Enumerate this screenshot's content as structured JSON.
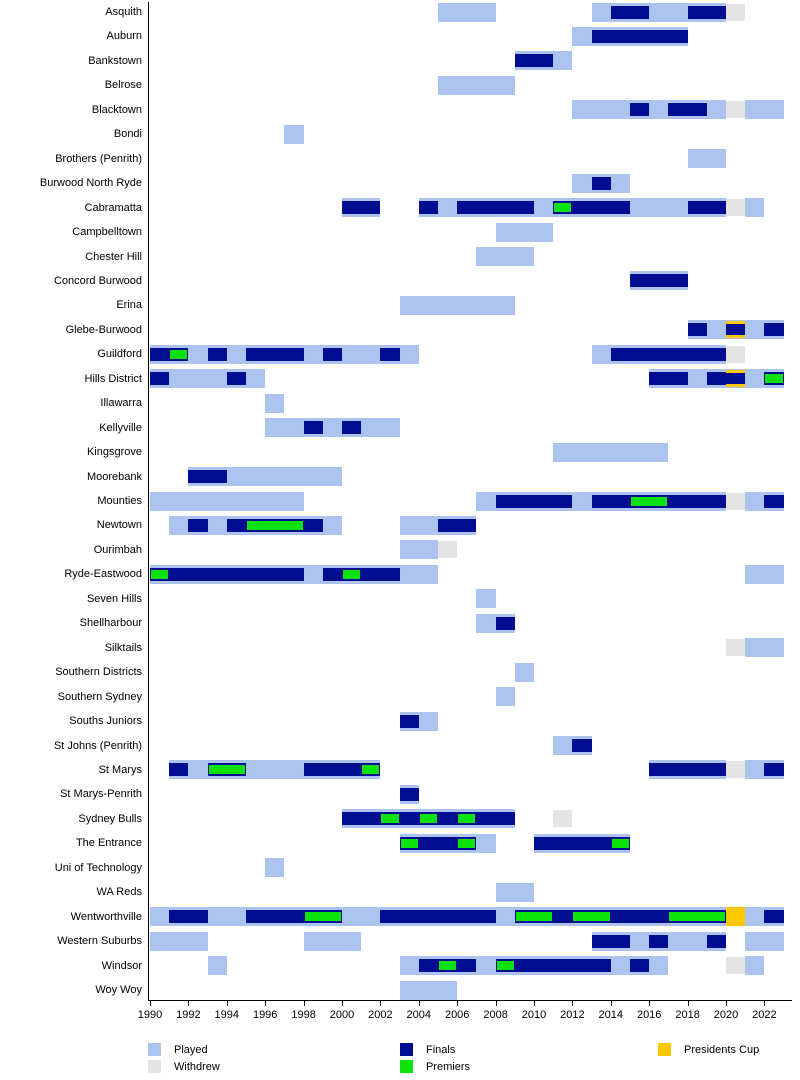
{
  "legend": {
    "items": [
      {
        "label": "Played",
        "status": "played"
      },
      {
        "label": "Withdrew",
        "status": "withdrew"
      },
      {
        "label": "Finals",
        "status": "finals"
      },
      {
        "label": "Premiers",
        "status": "premiers"
      },
      {
        "label": "Presidents Cup",
        "status": "presidents_cup"
      }
    ]
  },
  "chart_data": {
    "type": "timeline",
    "title": "",
    "xlabel": "",
    "ylabel": "",
    "year_min": 1990,
    "year_max": 2023,
    "tick_years": [
      1990,
      1992,
      1994,
      1996,
      1998,
      2000,
      2002,
      2004,
      2006,
      2008,
      2010,
      2012,
      2014,
      2016,
      2018,
      2020,
      2022
    ],
    "status_colors": {
      "played": "#aac3ef",
      "withdrew": "#e4e4e4",
      "finals": "#000d91",
      "premiers": "#0be30b",
      "presidents_cup": "#fdc800"
    },
    "rows": [
      {
        "name": "Asquith",
        "segments": [
          [
            2005,
            2007,
            "played"
          ],
          [
            2013,
            2013,
            "played"
          ],
          [
            2014,
            2015,
            "finals"
          ],
          [
            2016,
            2017,
            "played"
          ],
          [
            2018,
            2019,
            "finals"
          ],
          [
            2020,
            2020,
            "withdrew"
          ]
        ]
      },
      {
        "name": "Auburn",
        "segments": [
          [
            2012,
            2012,
            "played"
          ],
          [
            2013,
            2017,
            "finals"
          ]
        ]
      },
      {
        "name": "Bankstown",
        "segments": [
          [
            2009,
            2010,
            "finals"
          ],
          [
            2011,
            2011,
            "played"
          ]
        ]
      },
      {
        "name": "Belrose",
        "segments": [
          [
            2005,
            2008,
            "played"
          ]
        ]
      },
      {
        "name": "Blacktown",
        "segments": [
          [
            2012,
            2014,
            "played"
          ],
          [
            2015,
            2015,
            "finals"
          ],
          [
            2016,
            2016,
            "played"
          ],
          [
            2017,
            2018,
            "finals"
          ],
          [
            2019,
            2019,
            "played"
          ],
          [
            2020,
            2020,
            "withdrew"
          ],
          [
            2021,
            2022,
            "played"
          ]
        ]
      },
      {
        "name": "Bondi",
        "segments": [
          [
            1997,
            1997,
            "played"
          ]
        ]
      },
      {
        "name": "Brothers (Penrith)",
        "segments": [
          [
            2018,
            2019,
            "played"
          ]
        ]
      },
      {
        "name": "Burwood North Ryde",
        "segments": [
          [
            2012,
            2012,
            "played"
          ],
          [
            2013,
            2013,
            "finals"
          ],
          [
            2014,
            2014,
            "played"
          ]
        ]
      },
      {
        "name": "Cabramatta",
        "segments": [
          [
            2000,
            2001,
            "finals"
          ],
          [
            2004,
            2004,
            "finals"
          ],
          [
            2005,
            2005,
            "played"
          ],
          [
            2006,
            2009,
            "finals"
          ],
          [
            2010,
            2010,
            "played"
          ],
          [
            2011,
            2011,
            "premiers"
          ],
          [
            2012,
            2014,
            "finals"
          ],
          [
            2015,
            2017,
            "played"
          ],
          [
            2018,
            2019,
            "finals"
          ],
          [
            2020,
            2020,
            "withdrew"
          ],
          [
            2021,
            2021,
            "played"
          ]
        ]
      },
      {
        "name": "Campbelltown",
        "segments": [
          [
            2008,
            2010,
            "played"
          ]
        ]
      },
      {
        "name": "Chester Hill",
        "segments": [
          [
            2007,
            2009,
            "played"
          ]
        ]
      },
      {
        "name": "Concord Burwood",
        "segments": [
          [
            2015,
            2017,
            "finals"
          ]
        ]
      },
      {
        "name": "Erina",
        "segments": [
          [
            2003,
            2008,
            "played"
          ]
        ]
      },
      {
        "name": "Glebe-Burwood",
        "segments": [
          [
            2018,
            2018,
            "finals"
          ],
          [
            2019,
            2019,
            "played"
          ],
          [
            2020,
            2020,
            "finals_presidents_cup"
          ],
          [
            2021,
            2021,
            "played"
          ],
          [
            2022,
            2022,
            "finals"
          ]
        ]
      },
      {
        "name": "Guildford",
        "segments": [
          [
            1990,
            1990,
            "finals"
          ],
          [
            1991,
            1991,
            "premiers"
          ],
          [
            1992,
            1992,
            "played"
          ],
          [
            1993,
            1993,
            "finals"
          ],
          [
            1994,
            1994,
            "played"
          ],
          [
            1995,
            1997,
            "finals"
          ],
          [
            1998,
            1998,
            "played"
          ],
          [
            1999,
            1999,
            "finals"
          ],
          [
            2000,
            2001,
            "played"
          ],
          [
            2002,
            2002,
            "finals"
          ],
          [
            2003,
            2003,
            "played"
          ],
          [
            2013,
            2013,
            "played"
          ],
          [
            2014,
            2019,
            "finals"
          ],
          [
            2020,
            2020,
            "withdrew"
          ]
        ]
      },
      {
        "name": "Hills District",
        "segments": [
          [
            1990,
            1990,
            "finals"
          ],
          [
            1991,
            1993,
            "played"
          ],
          [
            1994,
            1994,
            "finals"
          ],
          [
            1995,
            1995,
            "played"
          ],
          [
            2016,
            2017,
            "finals"
          ],
          [
            2018,
            2018,
            "played"
          ],
          [
            2019,
            2019,
            "finals"
          ],
          [
            2020,
            2020,
            "finals_presidents_cup"
          ],
          [
            2021,
            2021,
            "played"
          ],
          [
            2022,
            2022,
            "premiers"
          ]
        ]
      },
      {
        "name": "Illawarra",
        "segments": [
          [
            1996,
            1996,
            "played"
          ]
        ]
      },
      {
        "name": "Kellyville",
        "segments": [
          [
            1996,
            1997,
            "played"
          ],
          [
            1998,
            1998,
            "finals"
          ],
          [
            1999,
            1999,
            "played"
          ],
          [
            2000,
            2000,
            "finals"
          ],
          [
            2001,
            2002,
            "played"
          ]
        ]
      },
      {
        "name": "Kingsgrove",
        "segments": [
          [
            2011,
            2016,
            "played"
          ]
        ]
      },
      {
        "name": "Moorebank",
        "segments": [
          [
            1992,
            1993,
            "finals"
          ],
          [
            1994,
            1999,
            "played"
          ]
        ]
      },
      {
        "name": "Mounties",
        "segments": [
          [
            1990,
            1997,
            "played"
          ],
          [
            2007,
            2007,
            "played"
          ],
          [
            2008,
            2011,
            "finals"
          ],
          [
            2012,
            2012,
            "played"
          ],
          [
            2013,
            2014,
            "finals"
          ],
          [
            2015,
            2016,
            "premiers"
          ],
          [
            2017,
            2019,
            "finals"
          ],
          [
            2020,
            2020,
            "withdrew"
          ],
          [
            2021,
            2021,
            "played"
          ],
          [
            2022,
            2022,
            "finals"
          ]
        ]
      },
      {
        "name": "Newtown",
        "segments": [
          [
            1991,
            1991,
            "played"
          ],
          [
            1992,
            1992,
            "finals"
          ],
          [
            1993,
            1993,
            "played"
          ],
          [
            1994,
            1994,
            "finals"
          ],
          [
            1995,
            1997,
            "premiers"
          ],
          [
            1998,
            1998,
            "finals"
          ],
          [
            1999,
            1999,
            "played"
          ],
          [
            2003,
            2004,
            "played"
          ],
          [
            2005,
            2006,
            "finals"
          ]
        ]
      },
      {
        "name": "Ourimbah",
        "segments": [
          [
            2003,
            2004,
            "played"
          ],
          [
            2005,
            2005,
            "withdrew"
          ]
        ]
      },
      {
        "name": "Ryde-Eastwood",
        "segments": [
          [
            1990,
            1990,
            "premiers"
          ],
          [
            1991,
            1997,
            "finals"
          ],
          [
            1998,
            1998,
            "played"
          ],
          [
            1999,
            1999,
            "finals"
          ],
          [
            2000,
            2000,
            "premiers"
          ],
          [
            2001,
            2002,
            "finals"
          ],
          [
            2003,
            2004,
            "played"
          ],
          [
            2021,
            2022,
            "played"
          ]
        ]
      },
      {
        "name": "Seven Hills",
        "segments": [
          [
            2007,
            2007,
            "played"
          ]
        ]
      },
      {
        "name": "Shellharbour",
        "segments": [
          [
            2007,
            2007,
            "played"
          ],
          [
            2008,
            2008,
            "finals"
          ]
        ]
      },
      {
        "name": "Silktails",
        "segments": [
          [
            2020,
            2020,
            "withdrew"
          ],
          [
            2021,
            2022,
            "played"
          ]
        ]
      },
      {
        "name": "Southern Districts",
        "segments": [
          [
            2009,
            2009,
            "played"
          ]
        ]
      },
      {
        "name": "Southern Sydney",
        "segments": [
          [
            2008,
            2008,
            "played"
          ]
        ]
      },
      {
        "name": "Souths Juniors",
        "segments": [
          [
            2003,
            2003,
            "finals"
          ],
          [
            2004,
            2004,
            "played"
          ]
        ]
      },
      {
        "name": "St Johns (Penrith)",
        "segments": [
          [
            2011,
            2011,
            "played"
          ],
          [
            2012,
            2012,
            "finals"
          ]
        ]
      },
      {
        "name": "St Marys",
        "segments": [
          [
            1991,
            1991,
            "finals"
          ],
          [
            1992,
            1992,
            "played"
          ],
          [
            1993,
            1994,
            "premiers"
          ],
          [
            1995,
            1997,
            "played"
          ],
          [
            1998,
            2000,
            "finals"
          ],
          [
            2001,
            2001,
            "premiers"
          ],
          [
            2016,
            2019,
            "finals"
          ],
          [
            2020,
            2020,
            "withdrew"
          ],
          [
            2021,
            2021,
            "played"
          ],
          [
            2022,
            2022,
            "finals"
          ]
        ]
      },
      {
        "name": "St Marys-Penrith",
        "segments": [
          [
            2003,
            2003,
            "finals"
          ]
        ]
      },
      {
        "name": "Sydney Bulls",
        "segments": [
          [
            2000,
            2001,
            "finals"
          ],
          [
            2002,
            2002,
            "premiers"
          ],
          [
            2003,
            2003,
            "finals"
          ],
          [
            2004,
            2004,
            "premiers"
          ],
          [
            2005,
            2005,
            "finals"
          ],
          [
            2006,
            2006,
            "premiers"
          ],
          [
            2007,
            2008,
            "finals"
          ],
          [
            2011,
            2011,
            "withdrew"
          ]
        ]
      },
      {
        "name": "The Entrance",
        "segments": [
          [
            2003,
            2003,
            "premiers"
          ],
          [
            2004,
            2005,
            "finals"
          ],
          [
            2006,
            2006,
            "premiers"
          ],
          [
            2007,
            2007,
            "played"
          ],
          [
            2010,
            2013,
            "finals"
          ],
          [
            2014,
            2014,
            "premiers"
          ]
        ]
      },
      {
        "name": "Uni of Technology",
        "segments": [
          [
            1996,
            1996,
            "played"
          ]
        ]
      },
      {
        "name": "WA Reds",
        "segments": [
          [
            2008,
            2009,
            "played"
          ]
        ]
      },
      {
        "name": "Wentworthville",
        "segments": [
          [
            1990,
            1990,
            "played"
          ],
          [
            1991,
            1992,
            "finals"
          ],
          [
            1993,
            1994,
            "played"
          ],
          [
            1995,
            1997,
            "finals"
          ],
          [
            1998,
            1999,
            "premiers"
          ],
          [
            2000,
            2001,
            "played"
          ],
          [
            2002,
            2007,
            "finals"
          ],
          [
            2008,
            2008,
            "played"
          ],
          [
            2009,
            2010,
            "premiers"
          ],
          [
            2011,
            2011,
            "finals"
          ],
          [
            2012,
            2013,
            "premiers"
          ],
          [
            2014,
            2016,
            "finals"
          ],
          [
            2017,
            2019,
            "premiers"
          ],
          [
            2020,
            2020,
            "presidents_cup"
          ],
          [
            2021,
            2021,
            "played"
          ],
          [
            2022,
            2022,
            "finals"
          ]
        ]
      },
      {
        "name": "Western Suburbs",
        "segments": [
          [
            1990,
            1992,
            "played"
          ],
          [
            1998,
            2000,
            "played"
          ],
          [
            2013,
            2014,
            "finals"
          ],
          [
            2015,
            2015,
            "played"
          ],
          [
            2016,
            2016,
            "finals"
          ],
          [
            2017,
            2018,
            "played"
          ],
          [
            2019,
            2019,
            "finals"
          ],
          [
            2021,
            2022,
            "played"
          ]
        ]
      },
      {
        "name": "Windsor",
        "segments": [
          [
            1993,
            1993,
            "played"
          ],
          [
            2003,
            2003,
            "played"
          ],
          [
            2004,
            2004,
            "finals"
          ],
          [
            2005,
            2005,
            "premiers"
          ],
          [
            2006,
            2006,
            "finals"
          ],
          [
            2007,
            2007,
            "played"
          ],
          [
            2008,
            2008,
            "premiers"
          ],
          [
            2009,
            2013,
            "finals"
          ],
          [
            2014,
            2014,
            "played"
          ],
          [
            2015,
            2015,
            "finals"
          ],
          [
            2016,
            2016,
            "played"
          ],
          [
            2020,
            2020,
            "withdrew"
          ],
          [
            2021,
            2021,
            "played"
          ]
        ]
      },
      {
        "name": "Woy Woy",
        "segments": [
          [
            2003,
            2005,
            "played"
          ]
        ]
      }
    ]
  }
}
